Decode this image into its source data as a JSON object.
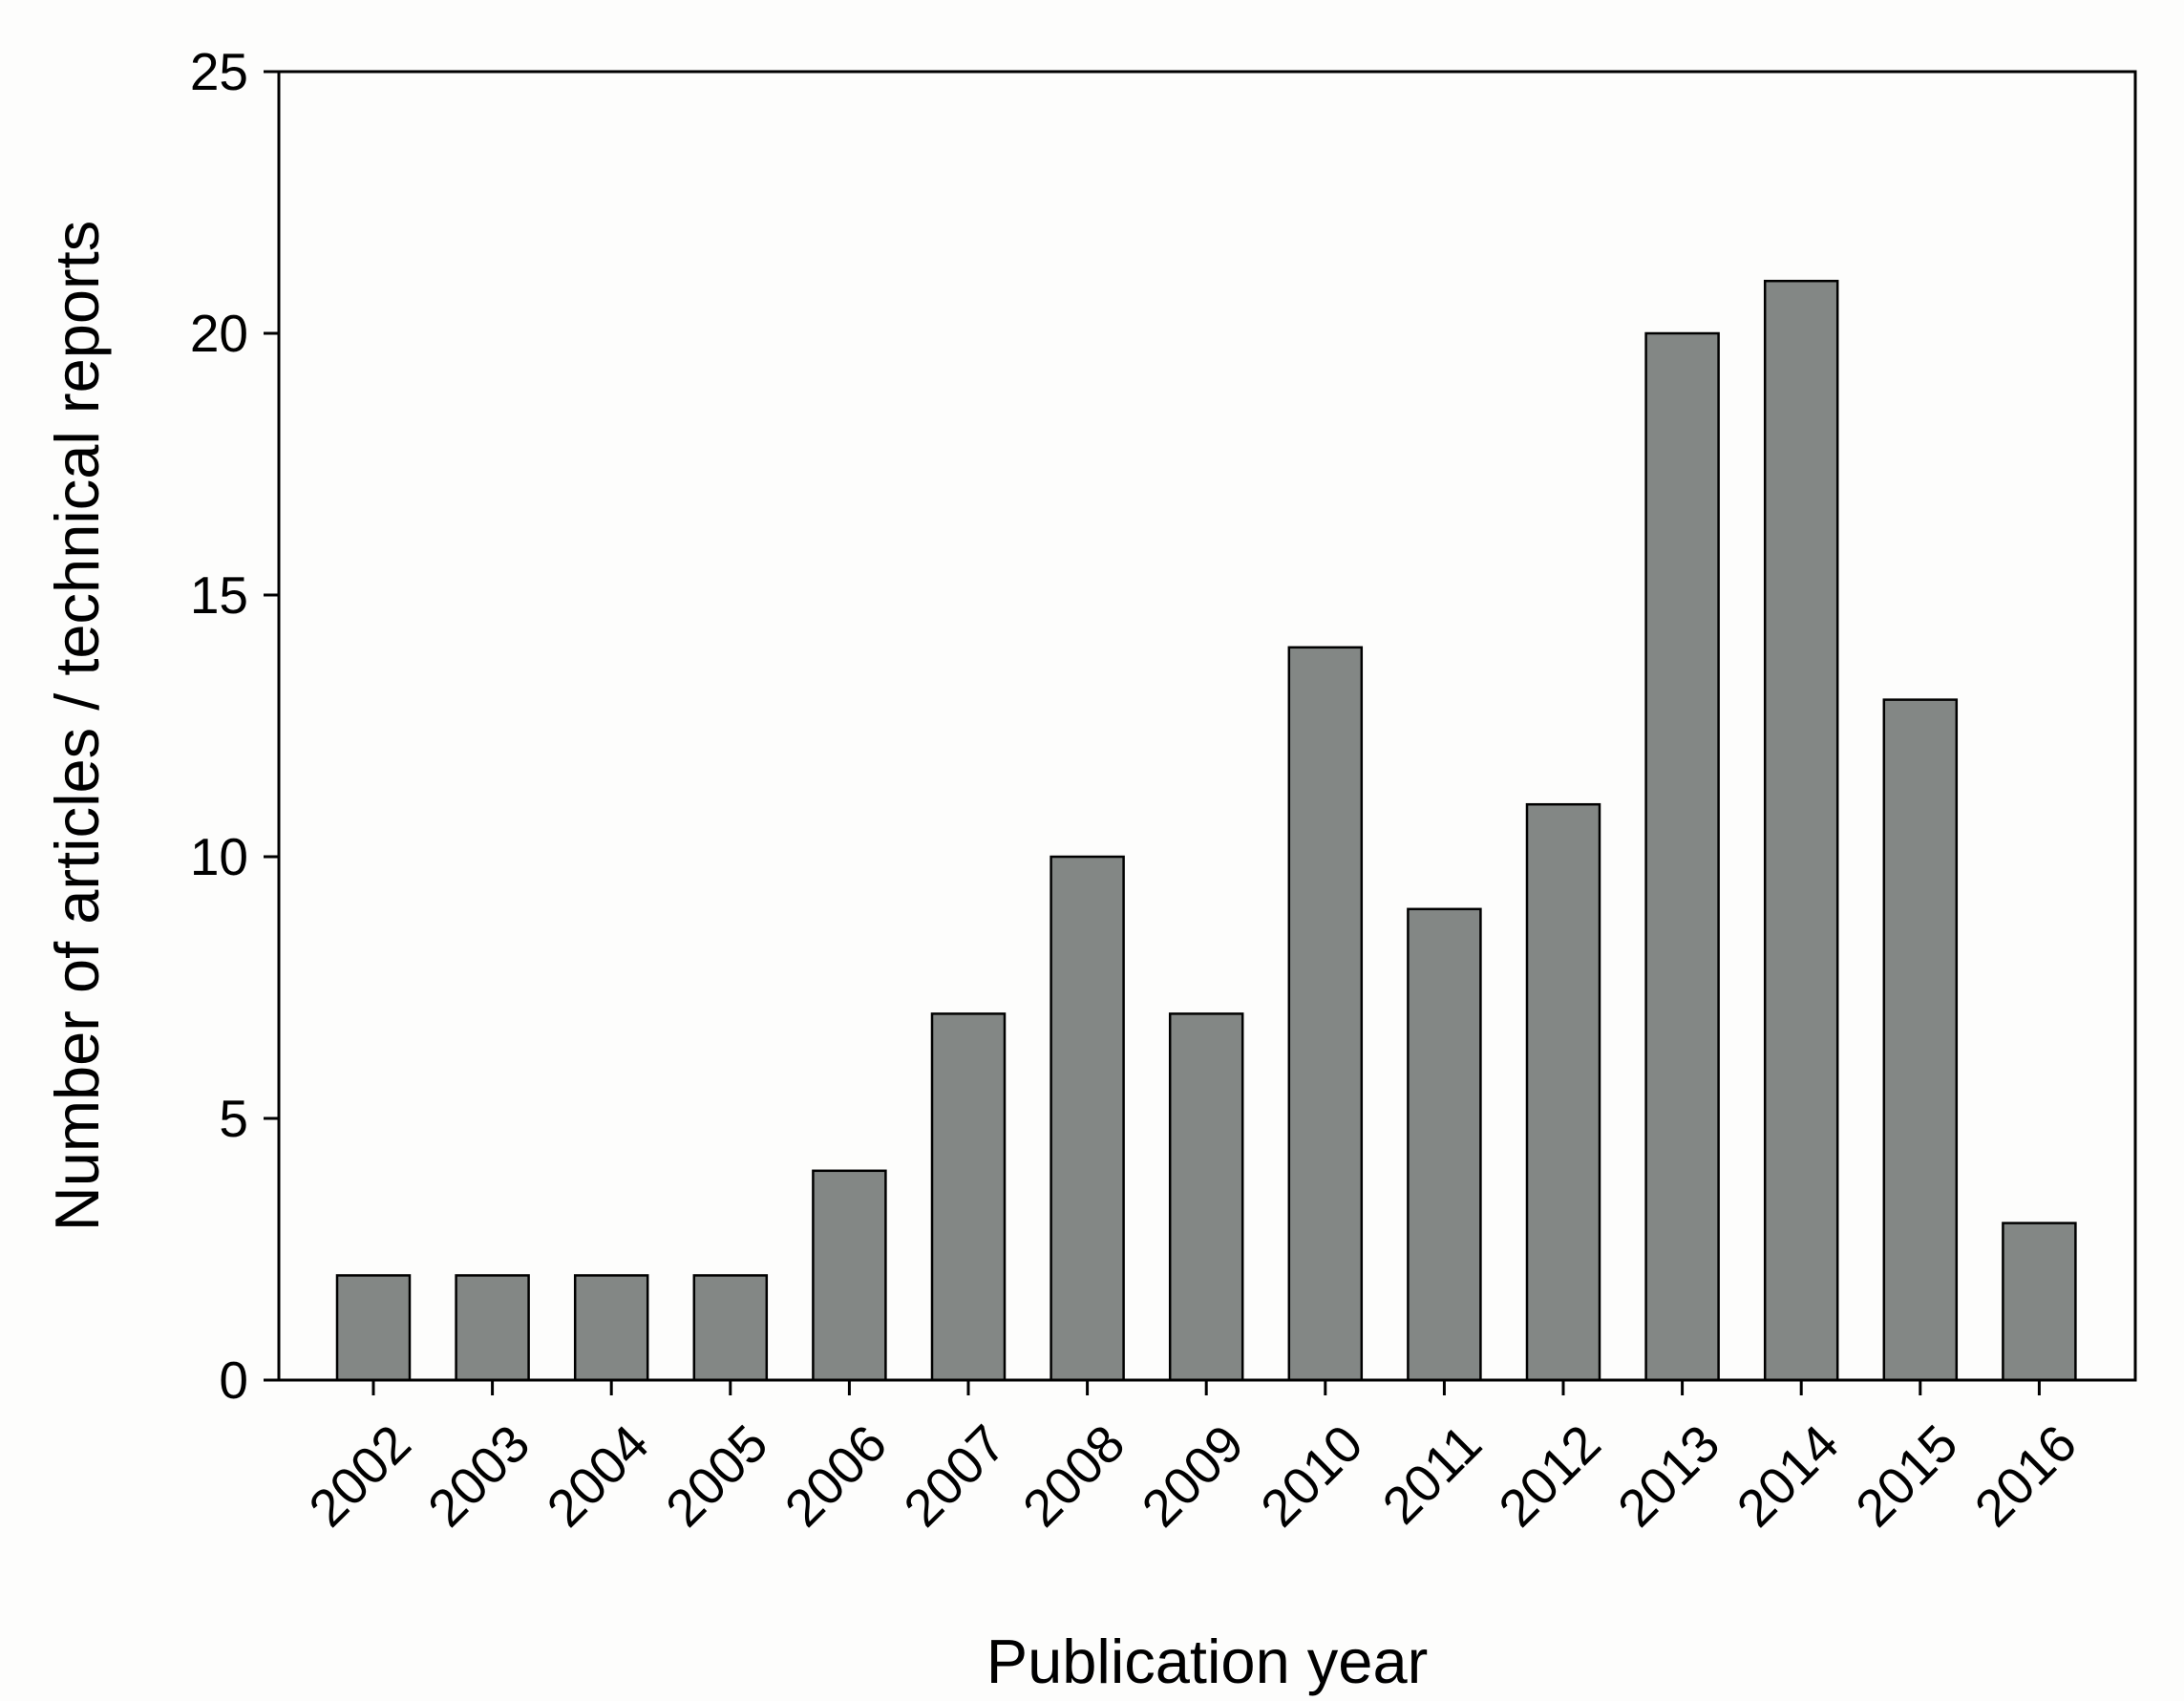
{
  "colors": {
    "background": "#fdfdfc",
    "bar_fill": "#838785",
    "bar_stroke": "#000000",
    "axis": "#000000",
    "text": "#000000"
  },
  "chart_data": {
    "type": "bar",
    "title": "",
    "xlabel": "Publication year",
    "ylabel": "Number of articles / technical reports",
    "categories": [
      "2002",
      "2003",
      "2004",
      "2005",
      "2006",
      "2007",
      "2008",
      "2009",
      "2010",
      "2011",
      "2012",
      "2013",
      "2014",
      "2015",
      "2016"
    ],
    "values": [
      2,
      2,
      2,
      2,
      4,
      7,
      10,
      7,
      14,
      9,
      11,
      20,
      21,
      13,
      3
    ],
    "ylim": [
      0,
      25
    ],
    "yticks": [
      0,
      5,
      10,
      15,
      20,
      25
    ],
    "grid": false,
    "legend": "none",
    "x_tick_rotation": "-45 degrees"
  }
}
